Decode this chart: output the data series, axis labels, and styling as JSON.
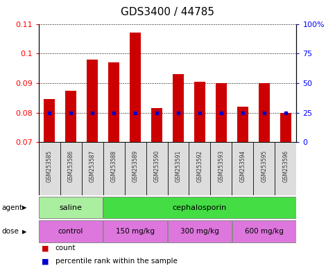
{
  "title": "GDS3400 / 44785",
  "samples": [
    "GSM253585",
    "GSM253586",
    "GSM253587",
    "GSM253588",
    "GSM253589",
    "GSM253590",
    "GSM253591",
    "GSM253592",
    "GSM253593",
    "GSM253594",
    "GSM253595",
    "GSM253596"
  ],
  "count_values": [
    0.0845,
    0.0875,
    0.098,
    0.097,
    0.107,
    0.0815,
    0.093,
    0.0905,
    0.09,
    0.082,
    0.09,
    0.08
  ],
  "percentile_y": [
    0.08,
    0.08,
    0.08,
    0.08,
    0.08,
    0.08,
    0.08,
    0.08,
    0.08,
    0.08,
    0.08,
    0.08
  ],
  "bar_bottom": 0.07,
  "ylim": [
    0.07,
    0.11
  ],
  "yticks_left": [
    0.07,
    0.08,
    0.09,
    0.1,
    0.11
  ],
  "yticks_right_labels": [
    "0",
    "25",
    "50",
    "75",
    "100%"
  ],
  "yticks_right_pos": [
    0.07,
    0.08,
    0.09,
    0.1,
    0.11
  ],
  "bar_color": "#cc0000",
  "percentile_color": "#0000cc",
  "agent_labels": [
    "saline",
    "cephalosporin"
  ],
  "agent_color_light": "#aaeea0",
  "agent_color_bright": "#44dd44",
  "dose_labels": [
    "control",
    "150 mg/kg",
    "300 mg/kg",
    "600 mg/kg"
  ],
  "dose_color": "#dd77dd",
  "legend_count_color": "#cc0000",
  "legend_percentile_color": "#0000cc"
}
